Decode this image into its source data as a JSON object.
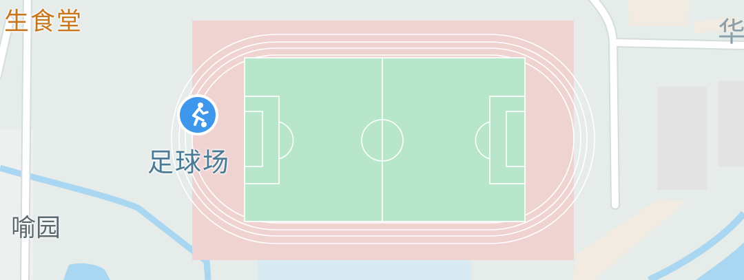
{
  "map": {
    "pois": [
      {
        "id": "canteen",
        "label": "生食堂"
      },
      {
        "id": "football-field",
        "label": "足球场",
        "icon": "soccer-player-icon",
        "icon_color": "#3f97ec"
      }
    ],
    "roads": [
      {
        "id": "hua",
        "label": "华"
      },
      {
        "id": "yu",
        "label": "喻园"
      }
    ],
    "colors": {
      "background": "#e6ecea",
      "track": "#efd3d1",
      "pitch": "#b8e6ca",
      "water": "#a9d6f0",
      "building": "#e5e5e5",
      "road": "#ffffff"
    }
  }
}
